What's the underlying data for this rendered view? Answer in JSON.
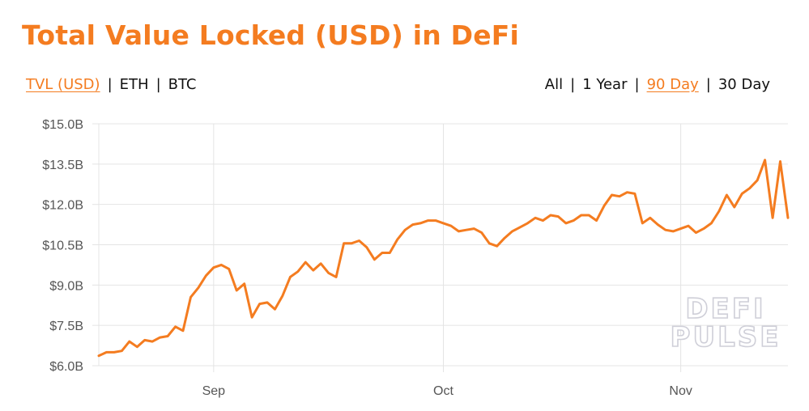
{
  "title": "Total Value Locked (USD) in DeFi",
  "colors": {
    "accent": "#f47c20",
    "grid": "#e4e4e4",
    "text": "#111111"
  },
  "metric_tabs": [
    {
      "label": "TVL (USD)",
      "active": true
    },
    {
      "label": "ETH",
      "active": false
    },
    {
      "label": "BTC",
      "active": false
    }
  ],
  "range_tabs": [
    {
      "label": "All",
      "active": false
    },
    {
      "label": "1 Year",
      "active": false
    },
    {
      "label": "90 Day",
      "active": true
    },
    {
      "label": "30 Day",
      "active": false
    }
  ],
  "separator": "|",
  "watermark": [
    "DEFI",
    "PULSE"
  ],
  "chart_data": {
    "type": "line",
    "title": "Total Value Locked (USD) in DeFi",
    "xlabel": "",
    "ylabel": "",
    "x_range": [
      "2020-08-17",
      "2020-11-15"
    ],
    "ylim": [
      6.0,
      15.0
    ],
    "y_ticks": [
      6.0,
      7.5,
      9.0,
      10.5,
      12.0,
      13.5,
      15.0
    ],
    "y_tick_labels": [
      "$6.0B",
      "$7.5B",
      "$9.0B",
      "$10.5B",
      "$12.0B",
      "$13.5B",
      "$15.0B"
    ],
    "x_ticks": [
      "2020-09-01",
      "2020-10-01",
      "2020-11-01"
    ],
    "x_tick_labels": [
      "Sep",
      "Oct",
      "Nov"
    ],
    "grid": true,
    "series": [
      {
        "color": "#f47c20",
        "x": [
          "2020-08-17",
          "2020-08-18",
          "2020-08-19",
          "2020-08-20",
          "2020-08-21",
          "2020-08-22",
          "2020-08-23",
          "2020-08-24",
          "2020-08-25",
          "2020-08-26",
          "2020-08-27",
          "2020-08-28",
          "2020-08-29",
          "2020-08-30",
          "2020-08-31",
          "2020-09-01",
          "2020-09-02",
          "2020-09-03",
          "2020-09-04",
          "2020-09-05",
          "2020-09-06",
          "2020-09-07",
          "2020-09-08",
          "2020-09-09",
          "2020-09-10",
          "2020-09-11",
          "2020-09-12",
          "2020-09-13",
          "2020-09-14",
          "2020-09-15",
          "2020-09-16",
          "2020-09-17",
          "2020-09-18",
          "2020-09-19",
          "2020-09-20",
          "2020-09-21",
          "2020-09-22",
          "2020-09-23",
          "2020-09-24",
          "2020-09-25",
          "2020-09-26",
          "2020-09-27",
          "2020-09-28",
          "2020-09-29",
          "2020-09-30",
          "2020-10-01",
          "2020-10-02",
          "2020-10-03",
          "2020-10-04",
          "2020-10-05",
          "2020-10-06",
          "2020-10-07",
          "2020-10-08",
          "2020-10-09",
          "2020-10-10",
          "2020-10-11",
          "2020-10-12",
          "2020-10-13",
          "2020-10-14",
          "2020-10-15",
          "2020-10-16",
          "2020-10-17",
          "2020-10-18",
          "2020-10-19",
          "2020-10-20",
          "2020-10-21",
          "2020-10-22",
          "2020-10-23",
          "2020-10-24",
          "2020-10-25",
          "2020-10-26",
          "2020-10-27",
          "2020-10-28",
          "2020-10-29",
          "2020-10-30",
          "2020-10-31",
          "2020-11-01",
          "2020-11-02",
          "2020-11-03",
          "2020-11-04",
          "2020-11-05",
          "2020-11-06",
          "2020-11-07",
          "2020-11-08",
          "2020-11-09",
          "2020-11-10",
          "2020-11-11",
          "2020-11-12",
          "2020-11-13",
          "2020-11-14",
          "2020-11-15"
        ],
        "values": [
          6.37,
          6.5,
          6.5,
          6.55,
          6.9,
          6.7,
          6.95,
          6.9,
          7.05,
          7.1,
          7.45,
          7.3,
          8.55,
          8.9,
          9.35,
          9.65,
          9.75,
          9.6,
          8.8,
          9.05,
          7.8,
          8.3,
          8.35,
          8.1,
          8.6,
          9.3,
          9.5,
          9.85,
          9.55,
          9.8,
          9.45,
          9.3,
          10.55,
          10.55,
          10.65,
          10.4,
          9.95,
          10.2,
          10.2,
          10.7,
          11.05,
          11.25,
          11.3,
          11.4,
          11.4,
          11.3,
          11.2,
          11.0,
          11.05,
          11.1,
          10.95,
          10.55,
          10.45,
          10.75,
          11.0,
          11.15,
          11.3,
          11.5,
          11.4,
          11.6,
          11.55,
          11.3,
          11.4,
          11.6,
          11.6,
          11.4,
          11.95,
          12.35,
          12.3,
          12.45,
          12.4,
          11.3,
          11.5,
          11.25,
          11.05,
          11.0,
          11.1,
          11.2,
          10.95,
          11.1,
          11.3,
          11.75,
          12.35,
          11.9,
          12.4,
          12.6,
          12.9,
          13.65,
          11.5,
          13.6,
          11.5
        ]
      }
    ]
  }
}
